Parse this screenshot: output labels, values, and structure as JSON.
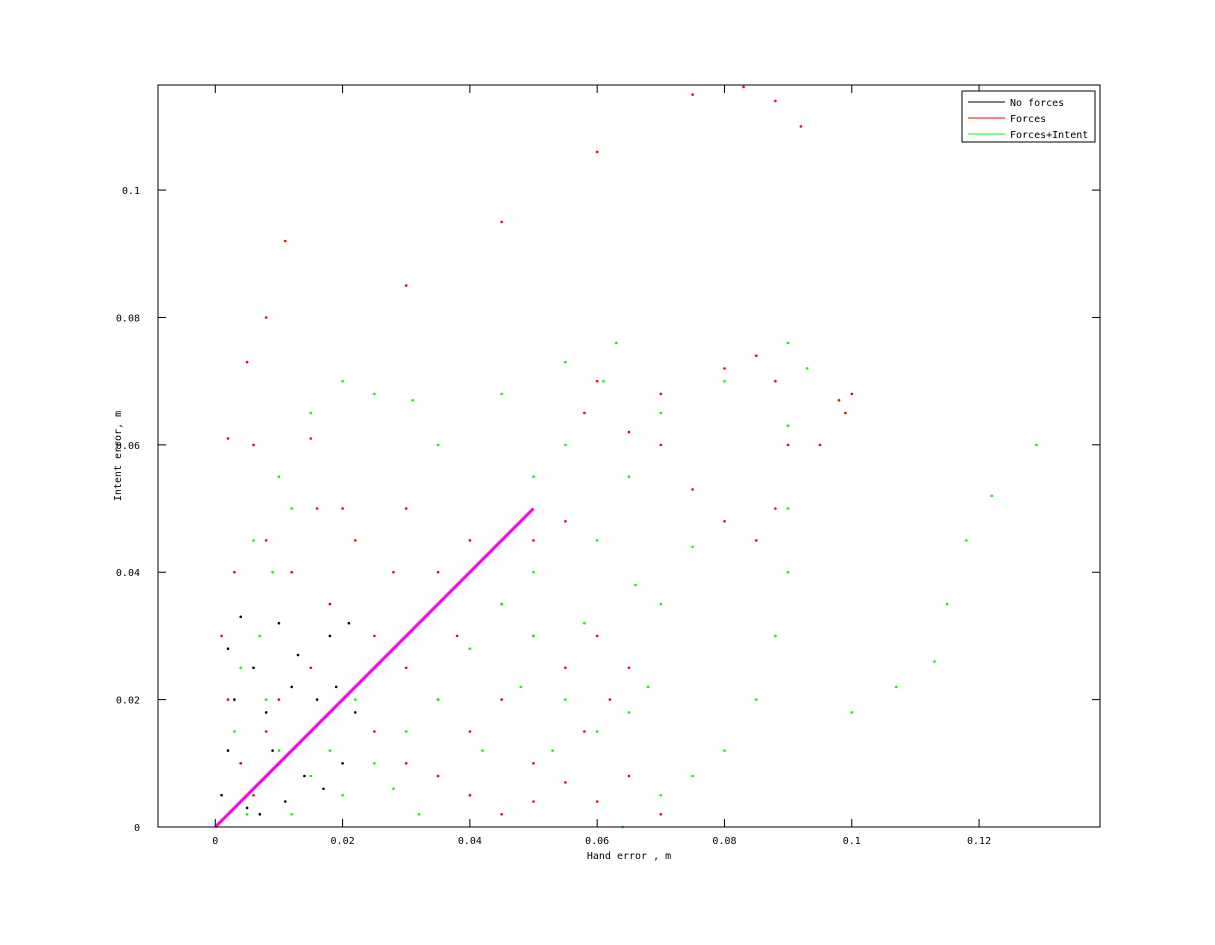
{
  "chart_data": {
    "type": "scatter",
    "title": "",
    "xlabel": "Hand error , m",
    "ylabel": "Intent error, m",
    "xlim": [
      -0.009,
      0.139
    ],
    "ylim": [
      0,
      0.1165
    ],
    "xticks": [
      0,
      0.02,
      0.04,
      0.06,
      0.08,
      0.1,
      0.12
    ],
    "xtick_labels": [
      "0",
      "0.02",
      "0.04",
      "0.06",
      "0.08",
      "0.1",
      "0.12"
    ],
    "yticks": [
      0,
      0.02,
      0.04,
      0.06,
      0.08,
      0.1
    ],
    "ytick_labels": [
      "0",
      "0.02",
      "0.04",
      "0.06",
      "0.08",
      "0.1"
    ],
    "grid": false,
    "legend_position": "top-right",
    "series": [
      {
        "name": "No forces",
        "color": "#000000",
        "points": [
          [
            0.001,
            0.005
          ],
          [
            0.002,
            0.012
          ],
          [
            0.003,
            0.02
          ],
          [
            0.002,
            0.028
          ],
          [
            0.004,
            0.033
          ],
          [
            0.006,
            0.025
          ],
          [
            0.008,
            0.018
          ],
          [
            0.01,
            0.032
          ],
          [
            0.012,
            0.022
          ],
          [
            0.015,
            0.015
          ],
          [
            0.018,
            0.03
          ],
          [
            0.021,
            0.032
          ],
          [
            0.019,
            0.022
          ],
          [
            0.014,
            0.008
          ],
          [
            0.011,
            0.004
          ],
          [
            0.007,
            0.002
          ],
          [
            0.004,
            0.01
          ],
          [
            0.009,
            0.012
          ],
          [
            0.013,
            0.027
          ],
          [
            0.016,
            0.02
          ],
          [
            0.02,
            0.01
          ],
          [
            0.022,
            0.018
          ],
          [
            0.017,
            0.006
          ],
          [
            0.005,
            0.003
          ]
        ]
      },
      {
        "name": "Forces",
        "color": "#ff0000",
        "points": [
          [
            0.005,
            0.073
          ],
          [
            0.008,
            0.08
          ],
          [
            0.011,
            0.092
          ],
          [
            0.03,
            0.085
          ],
          [
            0.045,
            0.095
          ],
          [
            0.06,
            0.106
          ],
          [
            0.075,
            0.115
          ],
          [
            0.083,
            0.1162
          ],
          [
            0.088,
            0.114
          ],
          [
            0.092,
            0.11
          ],
          [
            0.002,
            0.061
          ],
          [
            0.006,
            0.06
          ],
          [
            0.015,
            0.061
          ],
          [
            0.02,
            0.05
          ],
          [
            0.03,
            0.05
          ],
          [
            0.035,
            0.04
          ],
          [
            0.04,
            0.045
          ],
          [
            0.05,
            0.045
          ],
          [
            0.055,
            0.048
          ],
          [
            0.06,
            0.07
          ],
          [
            0.058,
            0.065
          ],
          [
            0.065,
            0.062
          ],
          [
            0.07,
            0.068
          ],
          [
            0.08,
            0.072
          ],
          [
            0.085,
            0.074
          ],
          [
            0.088,
            0.07
          ],
          [
            0.09,
            0.06
          ],
          [
            0.088,
            0.05
          ],
          [
            0.085,
            0.045
          ],
          [
            0.095,
            0.06
          ],
          [
            0.098,
            0.067
          ],
          [
            0.1,
            0.068
          ],
          [
            0.099,
            0.065
          ],
          [
            0.08,
            0.048
          ],
          [
            0.075,
            0.053
          ],
          [
            0.07,
            0.06
          ],
          [
            0.045,
            0.035
          ],
          [
            0.05,
            0.03
          ],
          [
            0.055,
            0.025
          ],
          [
            0.06,
            0.03
          ],
          [
            0.065,
            0.025
          ],
          [
            0.062,
            0.02
          ],
          [
            0.058,
            0.015
          ],
          [
            0.05,
            0.01
          ],
          [
            0.04,
            0.015
          ],
          [
            0.035,
            0.02
          ],
          [
            0.03,
            0.025
          ],
          [
            0.025,
            0.03
          ],
          [
            0.018,
            0.035
          ],
          [
            0.012,
            0.04
          ],
          [
            0.008,
            0.045
          ],
          [
            0.003,
            0.04
          ],
          [
            0.001,
            0.03
          ],
          [
            0.002,
            0.02
          ],
          [
            0.004,
            0.01
          ],
          [
            0.006,
            0.005
          ],
          [
            0.008,
            0.015
          ],
          [
            0.01,
            0.02
          ],
          [
            0.015,
            0.025
          ],
          [
            0.02,
            0.02
          ],
          [
            0.025,
            0.015
          ],
          [
            0.03,
            0.01
          ],
          [
            0.035,
            0.008
          ],
          [
            0.04,
            0.005
          ],
          [
            0.045,
            0.002
          ],
          [
            0.05,
            0.004
          ],
          [
            0.055,
            0.007
          ],
          [
            0.06,
            0.004
          ],
          [
            0.07,
            0.002
          ],
          [
            0.065,
            0.008
          ],
          [
            0.045,
            0.02
          ],
          [
            0.038,
            0.03
          ],
          [
            0.028,
            0.04
          ],
          [
            0.022,
            0.045
          ],
          [
            0.016,
            0.05
          ]
        ]
      },
      {
        "name": "Forces+Intent",
        "color": "#00ff00",
        "points": [
          [
            0.015,
            0.065
          ],
          [
            0.02,
            0.07
          ],
          [
            0.025,
            0.068
          ],
          [
            0.031,
            0.067
          ],
          [
            0.035,
            0.06
          ],
          [
            0.045,
            0.068
          ],
          [
            0.055,
            0.073
          ],
          [
            0.063,
            0.076
          ],
          [
            0.061,
            0.07
          ],
          [
            0.055,
            0.06
          ],
          [
            0.05,
            0.055
          ],
          [
            0.06,
            0.045
          ],
          [
            0.066,
            0.038
          ],
          [
            0.07,
            0.035
          ],
          [
            0.075,
            0.044
          ],
          [
            0.065,
            0.055
          ],
          [
            0.07,
            0.065
          ],
          [
            0.08,
            0.07
          ],
          [
            0.09,
            0.076
          ],
          [
            0.093,
            0.072
          ],
          [
            0.09,
            0.063
          ],
          [
            0.09,
            0.05
          ],
          [
            0.09,
            0.04
          ],
          [
            0.088,
            0.03
          ],
          [
            0.085,
            0.02
          ],
          [
            0.08,
            0.012
          ],
          [
            0.075,
            0.008
          ],
          [
            0.07,
            0.005
          ],
          [
            0.064,
            0.0
          ],
          [
            0.1,
            0.018
          ],
          [
            0.107,
            0.022
          ],
          [
            0.113,
            0.026
          ],
          [
            0.115,
            0.035
          ],
          [
            0.118,
            0.045
          ],
          [
            0.122,
            0.052
          ],
          [
            0.129,
            0.06
          ],
          [
            0.068,
            0.022
          ],
          [
            0.065,
            0.018
          ],
          [
            0.06,
            0.015
          ],
          [
            0.055,
            0.02
          ],
          [
            0.05,
            0.03
          ],
          [
            0.045,
            0.035
          ],
          [
            0.04,
            0.028
          ],
          [
            0.035,
            0.02
          ],
          [
            0.03,
            0.015
          ],
          [
            0.025,
            0.01
          ],
          [
            0.02,
            0.005
          ],
          [
            0.015,
            0.008
          ],
          [
            0.01,
            0.012
          ],
          [
            0.008,
            0.02
          ],
          [
            0.007,
            0.03
          ],
          [
            0.009,
            0.04
          ],
          [
            0.012,
            0.05
          ],
          [
            0.01,
            0.055
          ],
          [
            0.006,
            0.045
          ],
          [
            0.004,
            0.025
          ],
          [
            0.003,
            0.015
          ],
          [
            0.005,
            0.002
          ],
          [
            0.012,
            0.002
          ],
          [
            0.018,
            0.012
          ],
          [
            0.022,
            0.02
          ],
          [
            0.028,
            0.006
          ],
          [
            0.032,
            0.002
          ],
          [
            0.042,
            0.012
          ],
          [
            0.048,
            0.022
          ],
          [
            0.053,
            0.012
          ],
          [
            0.058,
            0.032
          ],
          [
            0.05,
            0.04
          ]
        ]
      },
      {
        "name": "",
        "color": "#ff00ff",
        "kind": "line",
        "points": [
          [
            0,
            0
          ],
          [
            0.05,
            0.05
          ]
        ]
      }
    ]
  }
}
